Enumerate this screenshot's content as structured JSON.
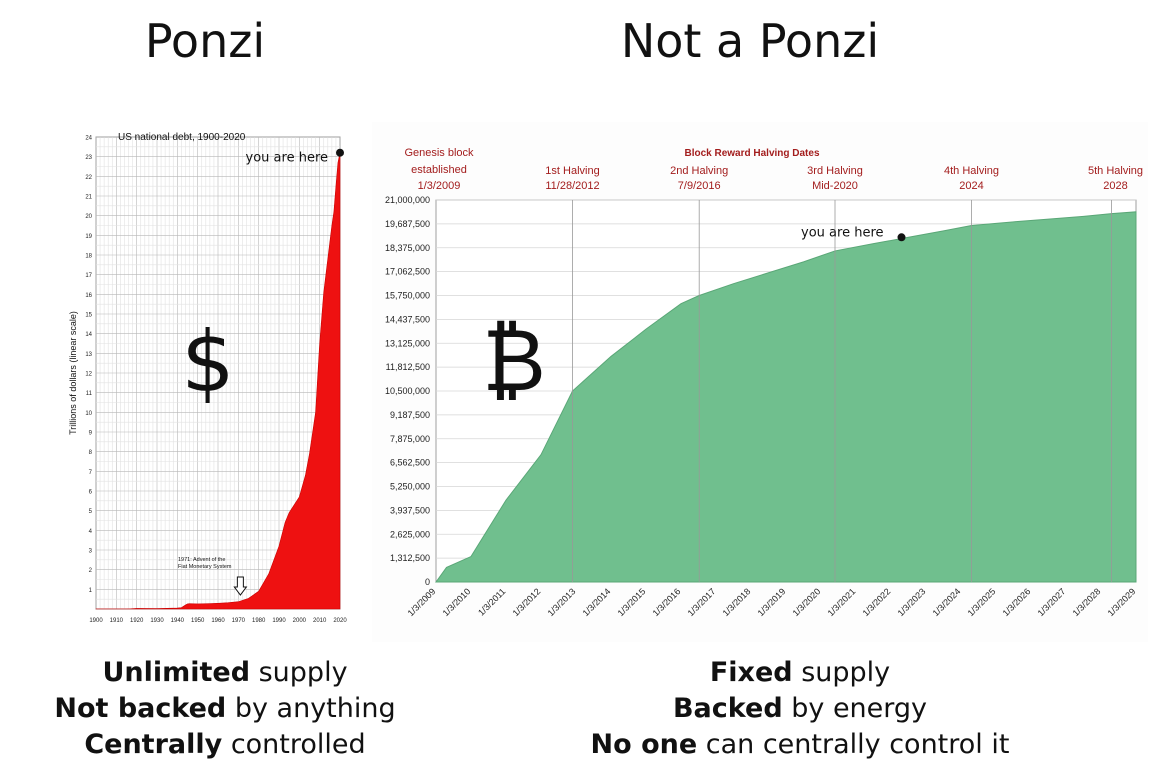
{
  "headings": {
    "left": "Ponzi",
    "right": "Not a Ponzi"
  },
  "chart_data": [
    {
      "type": "area",
      "title": "US national debt, 1900-2020",
      "ylabel": "Trillions of dollars (linear scale)",
      "xlabel": "",
      "xlim": [
        1900,
        2020
      ],
      "ylim": [
        0,
        24
      ],
      "x_ticks": [
        "1900",
        "1910",
        "1920",
        "1930",
        "1940",
        "1950",
        "1960",
        "1970",
        "1980",
        "1990",
        "2000",
        "2010",
        "2020"
      ],
      "y_ticks": [
        "1",
        "2",
        "3",
        "4",
        "5",
        "6",
        "7",
        "8",
        "9",
        "10",
        "11",
        "12",
        "13",
        "14",
        "15",
        "16",
        "17",
        "18",
        "19",
        "20",
        "21",
        "22",
        "23",
        "24"
      ],
      "x": [
        1900,
        1915,
        1917,
        1920,
        1930,
        1940,
        1942,
        1944,
        1945,
        1946,
        1950,
        1955,
        1960,
        1965,
        1970,
        1975,
        1980,
        1985,
        1990,
        1993,
        1995,
        2000,
        2003,
        2005,
        2008,
        2010,
        2012,
        2014,
        2016,
        2017,
        2018,
        2019,
        2020
      ],
      "y": [
        0.001,
        0.003,
        0.01,
        0.03,
        0.02,
        0.05,
        0.07,
        0.2,
        0.26,
        0.27,
        0.26,
        0.27,
        0.29,
        0.32,
        0.37,
        0.54,
        0.9,
        1.8,
        3.2,
        4.4,
        4.9,
        5.7,
        6.8,
        7.9,
        10.0,
        13.5,
        16.1,
        17.8,
        19.5,
        20.2,
        21.5,
        22.7,
        23.2
      ],
      "series_color": "#ee1111",
      "annotations": [
        {
          "text": "you are here",
          "x": 2020,
          "y": 23.2
        },
        {
          "text": "1971: Advent of the Fiat Monetary System",
          "x": 1971,
          "y": 1.2
        }
      ],
      "symbol": "$"
    },
    {
      "type": "area",
      "title": "Block Reward Halving Dates",
      "xlabel": "",
      "ylabel": "",
      "xlim": [
        2009,
        2029
      ],
      "ylim": [
        0,
        21000000
      ],
      "x_ticks": [
        "1/3/2009",
        "1/3/2010",
        "1/3/2011",
        "1/3/2012",
        "1/3/2013",
        "1/3/2014",
        "1/3/2015",
        "1/3/2016",
        "1/3/2017",
        "1/3/2018",
        "1/3/2019",
        "1/3/2020",
        "1/3/2021",
        "1/3/2022",
        "1/3/2023",
        "1/3/2024",
        "1/3/2025",
        "1/3/2026",
        "1/3/2027",
        "1/3/2028",
        "1/3/2029"
      ],
      "y_ticks": [
        "0",
        "1,312,500",
        "2,625,000",
        "3,937,500",
        "5,250,000",
        "6,562,500",
        "7,875,000",
        "9,187,500",
        "10,500,000",
        "11,812,500",
        "13,125,000",
        "14,437,500",
        "15,750,000",
        "17,062,500",
        "18,375,000",
        "19,687,500",
        "21,000,000"
      ],
      "x": [
        2009,
        2009.3,
        2010,
        2011,
        2012,
        2012.9,
        2014,
        2015,
        2016,
        2016.52,
        2017.5,
        2018.5,
        2019.5,
        2020.4,
        2021.5,
        2022.5,
        2023.5,
        2024.3,
        2025.5,
        2026.5,
        2027.5,
        2028.3,
        2029
      ],
      "y": [
        0,
        800000,
        1400000,
        4500000,
        7000000,
        10500000,
        12400000,
        13900000,
        15300000,
        15750000,
        16400000,
        17000000,
        17600000,
        18200000,
        18600000,
        18950000,
        19300000,
        19600000,
        19800000,
        19950000,
        20100000,
        20250000,
        20350000
      ],
      "series_color": "#70bf8e",
      "halvings": [
        {
          "label": "Genesis block",
          "label2": "established",
          "date": "1/3/2009",
          "x": 2009
        },
        {
          "label": "1st Halving",
          "date": "11/28/2012",
          "x": 2012.9
        },
        {
          "label": "2nd Halving",
          "date": "7/9/2016",
          "x": 2016.52
        },
        {
          "label": "3rd Halving",
          "date": "Mid-2020",
          "x": 2020.4
        },
        {
          "label": "4th Halving",
          "date": "2024",
          "x": 2024.3
        },
        {
          "label": "5th Halving",
          "date": "2028",
          "x": 2028.3
        }
      ],
      "annotations": [
        {
          "text": "you are here",
          "x": 2022.3,
          "y": 18950000
        }
      ],
      "symbol": "₿"
    }
  ],
  "captions": {
    "left": [
      {
        "bold": "Unlimited",
        "rest": " supply"
      },
      {
        "bold": "Not backed",
        "rest": " by anything"
      },
      {
        "bold": "Centrally",
        "rest": " controlled"
      }
    ],
    "right": [
      {
        "bold": "Fixed",
        "rest": " supply"
      },
      {
        "bold": "Backed",
        "rest": " by energy"
      },
      {
        "bold": "No one",
        "rest": " can centrally control it"
      }
    ]
  }
}
